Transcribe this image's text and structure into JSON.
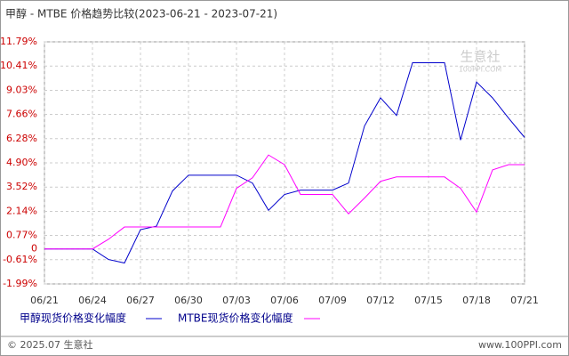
{
  "chart_data": {
    "type": "line",
    "title": "甲醇 - MTBE 价格趋势比较(2023-06-21 - 2023-07-21)",
    "categories": [
      "06/21",
      null,
      null,
      "06/24",
      null,
      null,
      "06/27",
      null,
      null,
      "06/30",
      null,
      null,
      "07/03",
      null,
      null,
      "07/06",
      null,
      null,
      "07/09",
      null,
      null,
      "07/12",
      null,
      null,
      "07/15",
      null,
      null,
      "07/18",
      null,
      null,
      "07/21"
    ],
    "series": [
      {
        "name": "甲醇现货价格变化幅度",
        "color": "#0000cc",
        "values": [
          0,
          0,
          0,
          0,
          -0.6,
          -0.8,
          1.1,
          1.3,
          3.3,
          4.2,
          4.2,
          4.2,
          4.2,
          3.75,
          2.2,
          3.1,
          3.35,
          3.35,
          3.35,
          3.75,
          7.0,
          8.6,
          7.6,
          10.6,
          10.6,
          10.6,
          6.2,
          9.5,
          8.6,
          7.45,
          6.35
        ]
      },
      {
        "name": "MTBE现货价格变化幅度",
        "color": "#ff00ff",
        "values": [
          0,
          0,
          0,
          0,
          0.55,
          1.25,
          1.25,
          1.25,
          1.25,
          1.25,
          1.25,
          1.25,
          3.45,
          4.05,
          5.35,
          4.8,
          3.1,
          3.1,
          3.1,
          2.0,
          2.9,
          3.85,
          4.1,
          4.1,
          4.1,
          4.1,
          3.45,
          2.1,
          4.5,
          4.8,
          4.8
        ]
      }
    ],
    "ylim": [
      -1.99,
      11.79
    ],
    "yticks": [
      {
        "value": -1.99,
        "label": "-1.99%"
      },
      {
        "value": -0.61,
        "label": "-0.61%"
      },
      0,
      {
        "value": 0.77,
        "label": "0.77%"
      },
      {
        "value": 2.14,
        "label": "2.14%"
      },
      {
        "value": 3.52,
        "label": "3.52%"
      },
      {
        "value": 4.9,
        "label": "4.90%"
      },
      {
        "value": 6.28,
        "label": "6.28%"
      },
      {
        "value": 7.66,
        "label": "7.66%"
      },
      {
        "value": 9.03,
        "label": "9.03%"
      },
      {
        "value": 10.41,
        "label": "10.41%"
      },
      {
        "value": 11.79,
        "label": "11.79%"
      }
    ],
    "grid": true,
    "watermark": {
      "name": "生意社",
      "site": "100PPI.COM"
    },
    "footer": {
      "left": "© 2025.07 生意社",
      "right": "www.100PPI.com"
    }
  }
}
